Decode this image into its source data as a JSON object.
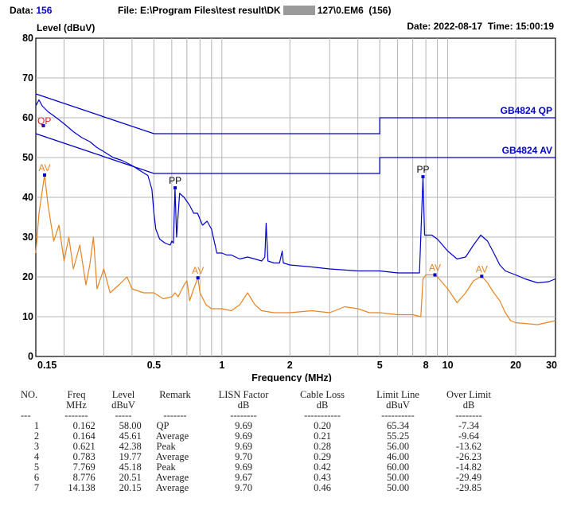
{
  "header": {
    "data_label": "Data:",
    "data_value": "156",
    "file_label": "File: E:\\Program Files\\test result\\DK",
    "file_tail": "127\\0.EM6  (156)",
    "date_label": "Date:",
    "date_value": "2022-08-17",
    "time_label": "Time:",
    "time_value": "15:00:19"
  },
  "chart_data": {
    "type": "line",
    "ylabel": "Level (dBuV)",
    "xlabel": "Frequency (MHz)",
    "xscale": "log",
    "xlim": [
      0.15,
      30
    ],
    "ylim": [
      0,
      80
    ],
    "grid": true,
    "x_ticks": [
      0.15,
      0.5,
      1,
      2,
      5,
      8,
      10,
      20,
      30
    ],
    "x_tick_labels": [
      "0.15",
      "0.5",
      "1",
      "2",
      "5",
      "8",
      "10",
      "20",
      "30"
    ],
    "y_ticks": [
      0,
      10,
      20,
      30,
      40,
      50,
      60,
      70,
      80
    ],
    "colors": {
      "limit": "#0000cc",
      "peak": "#0000cc",
      "average": "#e8841f",
      "marker_label_qp": "#dd2222",
      "marker_label_av": "#e8841f",
      "marker_label_pp": "#000000"
    },
    "limit_lines": [
      {
        "name": "GB4824 QP",
        "points": [
          [
            0.15,
            66
          ],
          [
            0.5,
            56
          ],
          [
            5,
            56
          ],
          [
            5,
            60
          ],
          [
            30,
            60
          ]
        ]
      },
      {
        "name": "GB4824 AV",
        "points": [
          [
            0.15,
            56
          ],
          [
            0.5,
            46
          ],
          [
            5,
            46
          ],
          [
            5,
            50
          ],
          [
            30,
            50
          ]
        ]
      }
    ],
    "series": [
      {
        "color": "#0000cc",
        "points": [
          [
            0.15,
            63
          ],
          [
            0.155,
            64.5
          ],
          [
            0.16,
            63
          ],
          [
            0.17,
            61.5
          ],
          [
            0.18,
            60.5
          ],
          [
            0.19,
            59.5
          ],
          [
            0.2,
            58.5
          ],
          [
            0.22,
            56.5
          ],
          [
            0.24,
            55
          ],
          [
            0.26,
            54
          ],
          [
            0.28,
            52.5
          ],
          [
            0.3,
            51.5
          ],
          [
            0.33,
            50
          ],
          [
            0.36,
            49.3
          ],
          [
            0.4,
            48
          ],
          [
            0.44,
            46.5
          ],
          [
            0.47,
            45.5
          ],
          [
            0.49,
            42
          ],
          [
            0.5,
            36
          ],
          [
            0.51,
            32
          ],
          [
            0.53,
            29.5
          ],
          [
            0.56,
            28.5
          ],
          [
            0.59,
            28
          ],
          [
            0.6,
            29
          ],
          [
            0.61,
            28.5
          ],
          [
            0.62,
            42.4
          ],
          [
            0.63,
            30
          ],
          [
            0.65,
            41
          ],
          [
            0.68,
            40
          ],
          [
            0.72,
            38
          ],
          [
            0.75,
            36
          ],
          [
            0.78,
            36
          ],
          [
            0.82,
            33
          ],
          [
            0.86,
            34
          ],
          [
            0.9,
            32
          ],
          [
            0.95,
            26
          ],
          [
            1.0,
            26
          ],
          [
            1.05,
            25.5
          ],
          [
            1.1,
            25.5
          ],
          [
            1.2,
            24.5
          ],
          [
            1.3,
            25
          ],
          [
            1.4,
            24.5
          ],
          [
            1.5,
            24
          ],
          [
            1.55,
            25
          ],
          [
            1.57,
            33.5
          ],
          [
            1.6,
            24
          ],
          [
            1.7,
            23.5
          ],
          [
            1.8,
            23.5
          ],
          [
            1.85,
            26.5
          ],
          [
            1.87,
            23.5
          ],
          [
            2.0,
            23
          ],
          [
            2.5,
            22.5
          ],
          [
            3.0,
            22
          ],
          [
            4.0,
            21.5
          ],
          [
            5.0,
            21.5
          ],
          [
            6.0,
            21
          ],
          [
            7.0,
            21
          ],
          [
            7.5,
            21
          ],
          [
            7.769,
            45.2
          ],
          [
            7.9,
            30.5
          ],
          [
            8.5,
            30.5
          ],
          [
            9.0,
            29.5
          ],
          [
            10,
            26.5
          ],
          [
            11,
            24.5
          ],
          [
            12,
            25
          ],
          [
            13,
            28
          ],
          [
            14,
            30.5
          ],
          [
            15,
            29
          ],
          [
            16,
            26
          ],
          [
            17,
            23
          ],
          [
            18,
            21.5
          ],
          [
            20,
            20.5
          ],
          [
            22,
            19.5
          ],
          [
            25,
            18.5
          ],
          [
            28,
            18.8
          ],
          [
            30,
            19.5
          ]
        ]
      },
      {
        "color": "#e8841f",
        "points": [
          [
            0.15,
            26
          ],
          [
            0.155,
            36
          ],
          [
            0.164,
            45.6
          ],
          [
            0.17,
            38
          ],
          [
            0.18,
            29
          ],
          [
            0.19,
            33
          ],
          [
            0.2,
            24
          ],
          [
            0.21,
            30
          ],
          [
            0.22,
            22
          ],
          [
            0.235,
            28
          ],
          [
            0.25,
            18
          ],
          [
            0.26,
            23
          ],
          [
            0.27,
            30
          ],
          [
            0.28,
            17
          ],
          [
            0.3,
            22
          ],
          [
            0.32,
            16
          ],
          [
            0.35,
            18
          ],
          [
            0.38,
            20
          ],
          [
            0.4,
            17
          ],
          [
            0.45,
            16
          ],
          [
            0.5,
            16
          ],
          [
            0.55,
            14.5
          ],
          [
            0.6,
            15
          ],
          [
            0.62,
            16
          ],
          [
            0.64,
            15
          ],
          [
            0.68,
            18
          ],
          [
            0.7,
            19
          ],
          [
            0.72,
            14
          ],
          [
            0.75,
            17
          ],
          [
            0.783,
            19.8
          ],
          [
            0.8,
            16
          ],
          [
            0.85,
            13
          ],
          [
            0.9,
            12
          ],
          [
            1.0,
            12
          ],
          [
            1.1,
            11.5
          ],
          [
            1.2,
            13
          ],
          [
            1.3,
            16
          ],
          [
            1.4,
            13
          ],
          [
            1.5,
            11.5
          ],
          [
            1.7,
            11
          ],
          [
            2,
            11
          ],
          [
            2.5,
            11.5
          ],
          [
            3.0,
            11
          ],
          [
            3.5,
            12.5
          ],
          [
            4.0,
            12
          ],
          [
            4.5,
            11
          ],
          [
            5.0,
            11
          ],
          [
            6.0,
            10.5
          ],
          [
            7.0,
            10.5
          ],
          [
            7.6,
            10
          ],
          [
            7.769,
            19.5
          ],
          [
            8.0,
            20.5
          ],
          [
            8.776,
            20.5
          ],
          [
            9,
            20
          ],
          [
            10,
            17
          ],
          [
            11,
            13.5
          ],
          [
            12,
            16
          ],
          [
            13,
            19
          ],
          [
            14.138,
            20.2
          ],
          [
            15,
            18.5
          ],
          [
            16,
            16
          ],
          [
            17,
            14
          ],
          [
            18,
            11
          ],
          [
            19,
            9
          ],
          [
            20,
            8.5
          ],
          [
            25,
            8
          ],
          [
            30,
            9
          ]
        ]
      }
    ],
    "markers": [
      {
        "label": "QP",
        "x": 0.162,
        "y": 58.0,
        "color": "#dd2222"
      },
      {
        "label": "AV",
        "x": 0.164,
        "y": 45.61,
        "color": "#e8841f"
      },
      {
        "label": "PP",
        "x": 0.621,
        "y": 42.38,
        "color": "#000000"
      },
      {
        "label": "AV",
        "x": 0.783,
        "y": 19.77,
        "color": "#e8841f"
      },
      {
        "label": "PP",
        "x": 7.769,
        "y": 45.18,
        "color": "#000000"
      },
      {
        "label": "AV",
        "x": 8.776,
        "y": 20.51,
        "color": "#e8841f"
      },
      {
        "label": "AV",
        "x": 14.138,
        "y": 20.15,
        "color": "#e8841f"
      }
    ]
  },
  "table": {
    "headers": [
      [
        "NO.",
        ""
      ],
      [
        "Freq",
        "MHz"
      ],
      [
        "Level",
        "dBuV"
      ],
      [
        "Remark",
        ""
      ],
      [
        "LISN Factor",
        "dB"
      ],
      [
        "Cable Loss",
        "dB"
      ],
      [
        "Limit Line",
        "dBuV"
      ],
      [
        "Over Limit",
        "dB"
      ]
    ],
    "dashes": [
      "---",
      "-------",
      "-----",
      "-------",
      "--------",
      "-----------",
      "----------",
      "--------"
    ],
    "rows": [
      [
        "1",
        "0.162",
        "58.00",
        "QP",
        "9.69",
        "0.20",
        "65.34",
        "-7.34"
      ],
      [
        "2",
        "0.164",
        "45.61",
        "Average",
        "9.69",
        "0.21",
        "55.25",
        "-9.64"
      ],
      [
        "3",
        "0.621",
        "42.38",
        "Peak",
        "9.69",
        "0.28",
        "56.00",
        "-13.62"
      ],
      [
        "4",
        "0.783",
        "19.77",
        "Average",
        "9.70",
        "0.29",
        "46.00",
        "-26.23"
      ],
      [
        "5",
        "7.769",
        "45.18",
        "Peak",
        "9.69",
        "0.42",
        "60.00",
        "-14.82"
      ],
      [
        "6",
        "8.776",
        "20.51",
        "Average",
        "9.67",
        "0.43",
        "50.00",
        "-29.49"
      ],
      [
        "7",
        "14.138",
        "20.15",
        "Average",
        "9.70",
        "0.46",
        "50.00",
        "-29.85"
      ]
    ]
  }
}
